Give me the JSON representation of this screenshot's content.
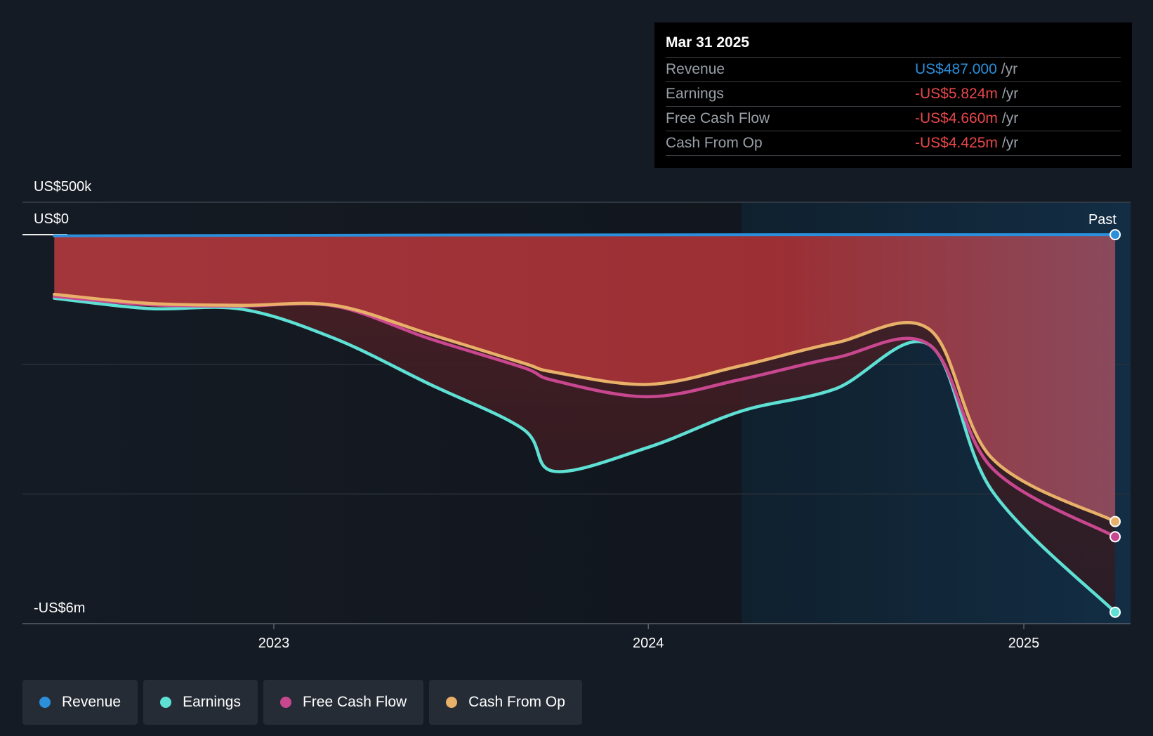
{
  "chart_data": {
    "type": "area",
    "y_axis": {
      "top_label": "US$500k",
      "zero_label": "US$0",
      "bottom_label": "-US$6m",
      "ylim": [
        -6000000,
        500000
      ]
    },
    "x_axis": {
      "ticks": [
        "2023",
        "2024",
        "2025"
      ],
      "xlim": [
        "2022-05-01",
        "2025-04-15"
      ]
    },
    "past_label": "Past",
    "past_start": "2024-04-01",
    "grid": true,
    "series": [
      {
        "name": "Revenue",
        "color": "#2b8fdc",
        "x": [
          "2022-06-01",
          "2023-01-01",
          "2023-07-01",
          "2024-01-01",
          "2024-07-01",
          "2025-03-31"
        ],
        "y": [
          -18000,
          -10000,
          -5000,
          -2000,
          0,
          487
        ]
      },
      {
        "name": "Earnings",
        "color": "#5ee0d4",
        "x": [
          "2022-06-01",
          "2022-09-01",
          "2022-12-01",
          "2023-03-01",
          "2023-06-01",
          "2023-09-01",
          "2023-10-01",
          "2024-01-01",
          "2024-04-01",
          "2024-07-01",
          "2024-10-01",
          "2024-12-01",
          "2025-03-31"
        ],
        "y": [
          -980000,
          -1140000,
          -1150000,
          -1600000,
          -2300000,
          -3000000,
          -3650000,
          -3280000,
          -2720000,
          -2380000,
          -1700000,
          -3950000,
          -5824000
        ]
      },
      {
        "name": "Free Cash Flow",
        "color": "#c8478f",
        "x": [
          "2022-06-01",
          "2022-09-01",
          "2022-12-01",
          "2023-03-01",
          "2023-06-01",
          "2023-09-01",
          "2023-10-01",
          "2024-01-01",
          "2024-04-01",
          "2024-07-01",
          "2024-10-01",
          "2024-12-01",
          "2025-03-31"
        ],
        "y": [
          -950000,
          -1080000,
          -1100000,
          -1100000,
          -1600000,
          -2050000,
          -2250000,
          -2500000,
          -2230000,
          -1900000,
          -1700000,
          -3600000,
          -4660000
        ]
      },
      {
        "name": "Cash From Op",
        "color": "#e8b068",
        "x": [
          "2022-06-01",
          "2022-09-01",
          "2022-12-01",
          "2023-03-01",
          "2023-06-01",
          "2023-09-01",
          "2023-10-01",
          "2024-01-01",
          "2024-04-01",
          "2024-07-01",
          "2024-10-01",
          "2024-12-01",
          "2025-03-31"
        ],
        "y": [
          -920000,
          -1060000,
          -1090000,
          -1090000,
          -1530000,
          -1980000,
          -2120000,
          -2310000,
          -2020000,
          -1670000,
          -1460000,
          -3450000,
          -4425000
        ]
      }
    ]
  },
  "tooltip": {
    "date": "Mar 31 2025",
    "rows": [
      {
        "name": "Revenue",
        "value": "US$487.000",
        "unit": "/yr",
        "color": "#2b8fdc"
      },
      {
        "name": "Earnings",
        "value": "-US$5.824m",
        "unit": "/yr",
        "color": "#e8474a"
      },
      {
        "name": "Free Cash Flow",
        "value": "-US$4.660m",
        "unit": "/yr",
        "color": "#e8474a"
      },
      {
        "name": "Cash From Op",
        "value": "-US$4.425m",
        "unit": "/yr",
        "color": "#e8474a"
      }
    ]
  },
  "legend": [
    {
      "label": "Revenue",
      "color": "#2b8fdc"
    },
    {
      "label": "Earnings",
      "color": "#5ee0d4"
    },
    {
      "label": "Free Cash Flow",
      "color": "#c8478f"
    },
    {
      "label": "Cash From Op",
      "color": "#e8b068"
    }
  ]
}
